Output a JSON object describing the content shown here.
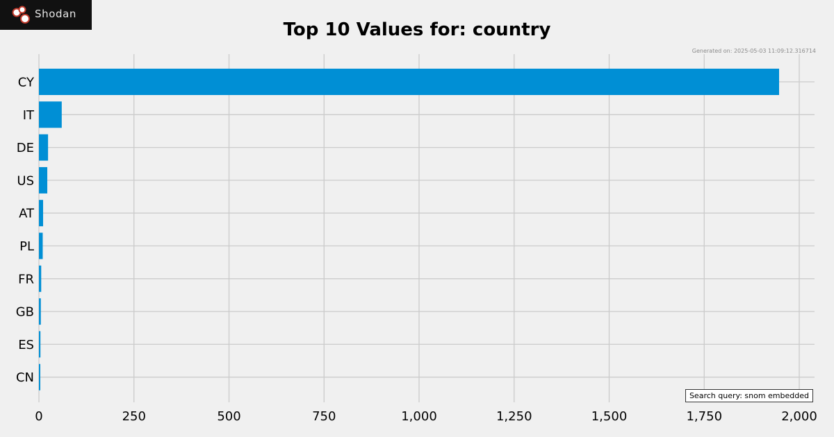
{
  "logo": {
    "text": "Shodan"
  },
  "generated_text": "Generated on: 2025-05-03 11:09:12.316714",
  "search_query_text": "Search query: snom embedded",
  "colors": {
    "bar": "#008fd5",
    "background": "#f0f0f0",
    "grid": "#cbcbcb"
  },
  "chart_data": {
    "type": "bar",
    "orientation": "horizontal",
    "title": "Top 10 Values for: country",
    "xlabel": "",
    "ylabel": "",
    "categories": [
      "CY",
      "IT",
      "DE",
      "US",
      "AT",
      "PL",
      "FR",
      "GB",
      "ES",
      "CN"
    ],
    "values": [
      1947,
      60,
      24,
      22,
      11,
      10,
      6,
      5,
      4,
      3
    ],
    "xlim": [
      0,
      2000
    ],
    "xticks": [
      0,
      250,
      500,
      750,
      1000,
      1250,
      1500,
      1750,
      2000
    ],
    "xtick_labels": [
      "0",
      "250",
      "500",
      "750",
      "1,000",
      "1,250",
      "1,500",
      "1,750",
      "2,000"
    ],
    "grid": true
  }
}
